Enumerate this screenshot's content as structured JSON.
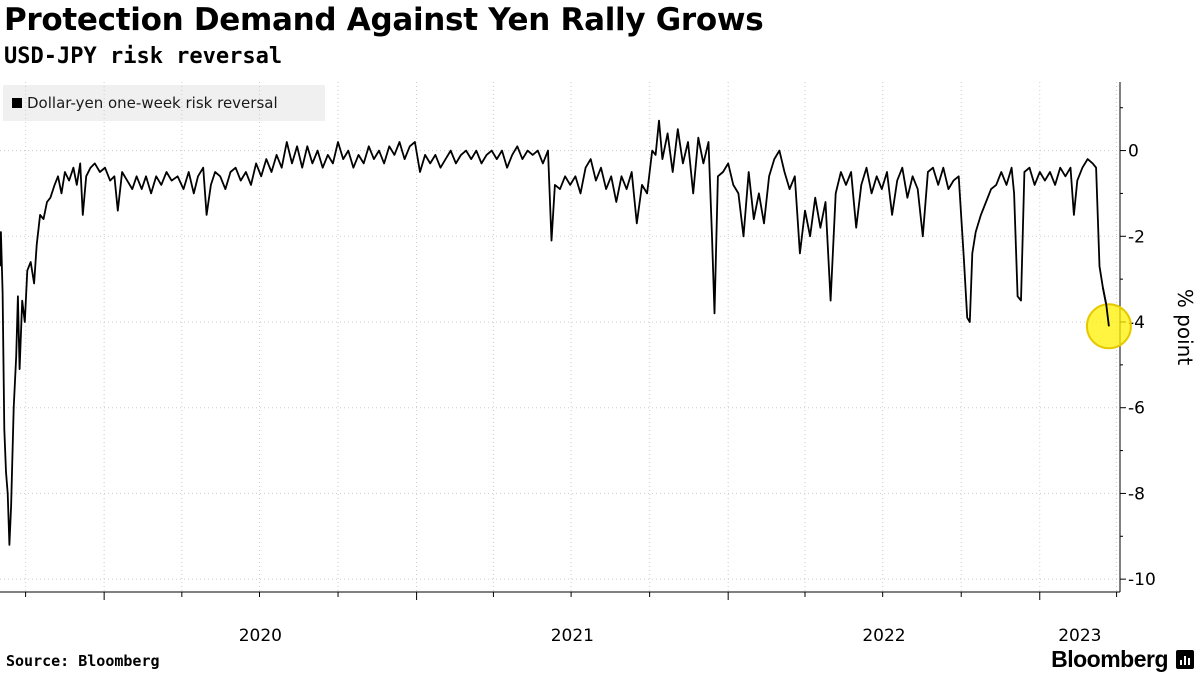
{
  "title": "Protection Demand Against Yen Rally Grows",
  "subtitle": "USD-JPY risk reversal",
  "legend": {
    "label": "Dollar-yen one-week risk reversal"
  },
  "source": "Source: Bloomberg",
  "brand": "Bloomberg",
  "colors": {
    "line": "#000000",
    "highlight": "#fff200",
    "highlight_stroke": "#e6c800",
    "grid": "#cccccc",
    "legend_bg": "#f0f0f0"
  },
  "chart_data": {
    "type": "line",
    "title": "Protection Demand Against Yen Rally Grows",
    "subtitle": "USD-JPY risk reversal",
    "ylabel": "% point",
    "ylim": [
      -10.3,
      1.6
    ],
    "yticks": [
      0,
      -2,
      -4,
      -6,
      -8,
      -10
    ],
    "xlim": [
      "2019-09-01",
      "2023-04-05"
    ],
    "xtick_labels": [
      {
        "label": "2020",
        "date": "2020-01-01"
      },
      {
        "label": "2021",
        "date": "2021-01-01"
      },
      {
        "label": "2022",
        "date": "2022-01-01"
      },
      {
        "label": "2023",
        "date": "2023-01-01"
      }
    ],
    "grid": "horizontal and quarterly vertical dotted",
    "legend_position": "top-left",
    "highlight": {
      "date": "2023-03-23",
      "value": -4.1
    },
    "series": [
      {
        "name": "Dollar-yen one-week risk reversal",
        "points": [
          [
            "2019-09-01",
            -2.7
          ],
          [
            "2019-09-02",
            -1.9
          ],
          [
            "2019-09-04",
            -3.3
          ],
          [
            "2019-09-06",
            -6.5
          ],
          [
            "2019-09-08",
            -7.5
          ],
          [
            "2019-09-10",
            -8.0
          ],
          [
            "2019-09-12",
            -9.2
          ],
          [
            "2019-09-14",
            -8.3
          ],
          [
            "2019-09-17",
            -6.0
          ],
          [
            "2019-09-20",
            -4.8
          ],
          [
            "2019-09-22",
            -3.4
          ],
          [
            "2019-09-24",
            -5.1
          ],
          [
            "2019-09-27",
            -3.5
          ],
          [
            "2019-09-30",
            -4.0
          ],
          [
            "2019-10-03",
            -2.8
          ],
          [
            "2019-10-07",
            -2.6
          ],
          [
            "2019-10-11",
            -3.1
          ],
          [
            "2019-10-14",
            -2.2
          ],
          [
            "2019-10-18",
            -1.5
          ],
          [
            "2019-10-22",
            -1.6
          ],
          [
            "2019-10-26",
            -1.2
          ],
          [
            "2019-10-30",
            -1.1
          ],
          [
            "2019-11-04",
            -0.8
          ],
          [
            "2019-11-08",
            -0.6
          ],
          [
            "2019-11-12",
            -1.0
          ],
          [
            "2019-11-16",
            -0.5
          ],
          [
            "2019-11-21",
            -0.7
          ],
          [
            "2019-11-26",
            -0.4
          ],
          [
            "2019-11-30",
            -0.8
          ],
          [
            "2019-12-04",
            -0.3
          ],
          [
            "2019-12-07",
            -1.5
          ],
          [
            "2019-12-11",
            -0.6
          ],
          [
            "2019-12-16",
            -0.4
          ],
          [
            "2019-12-21",
            -0.3
          ],
          [
            "2019-12-27",
            -0.5
          ],
          [
            "2020-01-02",
            -0.4
          ],
          [
            "2020-01-08",
            -0.7
          ],
          [
            "2020-01-13",
            -0.6
          ],
          [
            "2020-01-17",
            -1.4
          ],
          [
            "2020-01-22",
            -0.5
          ],
          [
            "2020-01-28",
            -0.7
          ],
          [
            "2020-02-03",
            -0.9
          ],
          [
            "2020-02-08",
            -0.6
          ],
          [
            "2020-02-14",
            -0.9
          ],
          [
            "2020-02-19",
            -0.6
          ],
          [
            "2020-02-25",
            -1.0
          ],
          [
            "2020-03-02",
            -0.6
          ],
          [
            "2020-03-08",
            -0.8
          ],
          [
            "2020-03-14",
            -0.5
          ],
          [
            "2020-03-20",
            -0.7
          ],
          [
            "2020-03-27",
            -0.6
          ],
          [
            "2020-04-03",
            -0.9
          ],
          [
            "2020-04-09",
            -0.5
          ],
          [
            "2020-04-15",
            -1.0
          ],
          [
            "2020-04-20",
            -0.6
          ],
          [
            "2020-04-26",
            -0.4
          ],
          [
            "2020-04-30",
            -1.5
          ],
          [
            "2020-05-05",
            -0.8
          ],
          [
            "2020-05-10",
            -0.5
          ],
          [
            "2020-05-16",
            -0.6
          ],
          [
            "2020-05-22",
            -0.9
          ],
          [
            "2020-05-28",
            -0.5
          ],
          [
            "2020-06-03",
            -0.4
          ],
          [
            "2020-06-09",
            -0.7
          ],
          [
            "2020-06-15",
            -0.5
          ],
          [
            "2020-06-21",
            -0.8
          ],
          [
            "2020-06-27",
            -0.3
          ],
          [
            "2020-07-03",
            -0.6
          ],
          [
            "2020-07-09",
            -0.2
          ],
          [
            "2020-07-15",
            -0.5
          ],
          [
            "2020-07-21",
            -0.1
          ],
          [
            "2020-07-27",
            -0.4
          ],
          [
            "2020-08-02",
            0.2
          ],
          [
            "2020-08-08",
            -0.3
          ],
          [
            "2020-08-14",
            0.1
          ],
          [
            "2020-08-20",
            -0.4
          ],
          [
            "2020-08-26",
            0.1
          ],
          [
            "2020-09-01",
            -0.3
          ],
          [
            "2020-09-07",
            0.0
          ],
          [
            "2020-09-13",
            -0.4
          ],
          [
            "2020-09-19",
            -0.1
          ],
          [
            "2020-09-25",
            -0.3
          ],
          [
            "2020-10-01",
            0.2
          ],
          [
            "2020-10-07",
            -0.2
          ],
          [
            "2020-10-13",
            0.0
          ],
          [
            "2020-10-19",
            -0.4
          ],
          [
            "2020-10-25",
            -0.1
          ],
          [
            "2020-10-31",
            -0.3
          ],
          [
            "2020-11-06",
            0.1
          ],
          [
            "2020-11-12",
            -0.2
          ],
          [
            "2020-11-18",
            0.0
          ],
          [
            "2020-11-24",
            -0.3
          ],
          [
            "2020-11-30",
            0.1
          ],
          [
            "2020-12-06",
            -0.1
          ],
          [
            "2020-12-12",
            0.2
          ],
          [
            "2020-12-18",
            -0.2
          ],
          [
            "2020-12-24",
            0.1
          ],
          [
            "2020-12-30",
            0.2
          ],
          [
            "2021-01-05",
            -0.5
          ],
          [
            "2021-01-11",
            -0.1
          ],
          [
            "2021-01-17",
            -0.3
          ],
          [
            "2021-01-23",
            -0.1
          ],
          [
            "2021-01-29",
            -0.4
          ],
          [
            "2021-02-04",
            -0.2
          ],
          [
            "2021-02-10",
            0.0
          ],
          [
            "2021-02-16",
            -0.3
          ],
          [
            "2021-02-22",
            -0.1
          ],
          [
            "2021-02-28",
            0.0
          ],
          [
            "2021-03-06",
            -0.2
          ],
          [
            "2021-03-12",
            0.0
          ],
          [
            "2021-03-18",
            -0.3
          ],
          [
            "2021-03-24",
            -0.1
          ],
          [
            "2021-03-30",
            0.0
          ],
          [
            "2021-04-05",
            -0.2
          ],
          [
            "2021-04-11",
            0.0
          ],
          [
            "2021-04-17",
            -0.4
          ],
          [
            "2021-04-23",
            -0.1
          ],
          [
            "2021-04-29",
            0.1
          ],
          [
            "2021-05-05",
            -0.2
          ],
          [
            "2021-05-11",
            0.0
          ],
          [
            "2021-05-17",
            -0.1
          ],
          [
            "2021-05-23",
            0.0
          ],
          [
            "2021-05-29",
            -0.3
          ],
          [
            "2021-06-04",
            0.0
          ],
          [
            "2021-06-08",
            -2.1
          ],
          [
            "2021-06-12",
            -0.8
          ],
          [
            "2021-06-18",
            -0.9
          ],
          [
            "2021-06-24",
            -0.6
          ],
          [
            "2021-06-30",
            -0.8
          ],
          [
            "2021-07-06",
            -0.6
          ],
          [
            "2021-07-12",
            -1.0
          ],
          [
            "2021-07-18",
            -0.4
          ],
          [
            "2021-07-24",
            -0.2
          ],
          [
            "2021-07-30",
            -0.7
          ],
          [
            "2021-08-05",
            -0.4
          ],
          [
            "2021-08-11",
            -0.9
          ],
          [
            "2021-08-17",
            -0.6
          ],
          [
            "2021-08-23",
            -1.2
          ],
          [
            "2021-08-29",
            -0.6
          ],
          [
            "2021-09-04",
            -0.9
          ],
          [
            "2021-09-10",
            -0.5
          ],
          [
            "2021-09-16",
            -1.7
          ],
          [
            "2021-09-22",
            -0.8
          ],
          [
            "2021-09-28",
            -1.0
          ],
          [
            "2021-10-04",
            0.0
          ],
          [
            "2021-10-08",
            -0.1
          ],
          [
            "2021-10-12",
            0.7
          ],
          [
            "2021-10-16",
            -0.2
          ],
          [
            "2021-10-22",
            0.4
          ],
          [
            "2021-10-28",
            -0.5
          ],
          [
            "2021-11-03",
            0.5
          ],
          [
            "2021-11-09",
            -0.3
          ],
          [
            "2021-11-15",
            0.2
          ],
          [
            "2021-11-21",
            -1.0
          ],
          [
            "2021-11-27",
            0.3
          ],
          [
            "2021-12-03",
            -0.3
          ],
          [
            "2021-12-09",
            0.2
          ],
          [
            "2021-12-13",
            -2.0
          ],
          [
            "2021-12-16",
            -3.8
          ],
          [
            "2021-12-20",
            -0.6
          ],
          [
            "2021-12-26",
            -0.5
          ],
          [
            "2022-01-01",
            -0.3
          ],
          [
            "2022-01-07",
            -0.8
          ],
          [
            "2022-01-13",
            -1.0
          ],
          [
            "2022-01-19",
            -2.0
          ],
          [
            "2022-01-25",
            -0.5
          ],
          [
            "2022-01-31",
            -1.6
          ],
          [
            "2022-02-06",
            -1.0
          ],
          [
            "2022-02-12",
            -1.7
          ],
          [
            "2022-02-18",
            -0.6
          ],
          [
            "2022-02-24",
            -0.2
          ],
          [
            "2022-03-02",
            0.0
          ],
          [
            "2022-03-08",
            -0.5
          ],
          [
            "2022-03-14",
            -0.9
          ],
          [
            "2022-03-20",
            -0.6
          ],
          [
            "2022-03-26",
            -2.4
          ],
          [
            "2022-04-01",
            -1.4
          ],
          [
            "2022-04-07",
            -2.0
          ],
          [
            "2022-04-13",
            -1.1
          ],
          [
            "2022-04-19",
            -1.8
          ],
          [
            "2022-04-25",
            -1.2
          ],
          [
            "2022-05-01",
            -3.5
          ],
          [
            "2022-05-07",
            -1.0
          ],
          [
            "2022-05-13",
            -0.5
          ],
          [
            "2022-05-19",
            -0.8
          ],
          [
            "2022-05-25",
            -0.5
          ],
          [
            "2022-05-31",
            -1.8
          ],
          [
            "2022-06-06",
            -0.8
          ],
          [
            "2022-06-12",
            -0.4
          ],
          [
            "2022-06-18",
            -1.0
          ],
          [
            "2022-06-24",
            -0.6
          ],
          [
            "2022-06-30",
            -0.9
          ],
          [
            "2022-07-06",
            -0.5
          ],
          [
            "2022-07-12",
            -1.5
          ],
          [
            "2022-07-18",
            -0.7
          ],
          [
            "2022-07-24",
            -0.4
          ],
          [
            "2022-07-30",
            -1.1
          ],
          [
            "2022-08-05",
            -0.6
          ],
          [
            "2022-08-11",
            -0.9
          ],
          [
            "2022-08-17",
            -2.0
          ],
          [
            "2022-08-23",
            -0.5
          ],
          [
            "2022-08-29",
            -0.4
          ],
          [
            "2022-09-04",
            -0.8
          ],
          [
            "2022-09-10",
            -0.4
          ],
          [
            "2022-09-16",
            -0.9
          ],
          [
            "2022-09-22",
            -0.7
          ],
          [
            "2022-09-28",
            -0.6
          ],
          [
            "2022-10-04",
            -2.5
          ],
          [
            "2022-10-08",
            -3.9
          ],
          [
            "2022-10-11",
            -4.0
          ],
          [
            "2022-10-14",
            -2.4
          ],
          [
            "2022-10-18",
            -1.9
          ],
          [
            "2022-10-24",
            -1.5
          ],
          [
            "2022-10-30",
            -1.2
          ],
          [
            "2022-11-05",
            -0.9
          ],
          [
            "2022-11-11",
            -0.8
          ],
          [
            "2022-11-17",
            -0.5
          ],
          [
            "2022-11-23",
            -0.8
          ],
          [
            "2022-11-29",
            -0.4
          ],
          [
            "2022-12-02",
            -1.0
          ],
          [
            "2022-12-06",
            -3.4
          ],
          [
            "2022-12-10",
            -3.5
          ],
          [
            "2022-12-14",
            -0.5
          ],
          [
            "2022-12-20",
            -0.4
          ],
          [
            "2022-12-26",
            -0.8
          ],
          [
            "2023-01-01",
            -0.5
          ],
          [
            "2023-01-07",
            -0.7
          ],
          [
            "2023-01-13",
            -0.5
          ],
          [
            "2023-01-19",
            -0.8
          ],
          [
            "2023-01-25",
            -0.4
          ],
          [
            "2023-01-31",
            -0.6
          ],
          [
            "2023-02-06",
            -0.4
          ],
          [
            "2023-02-10",
            -1.5
          ],
          [
            "2023-02-14",
            -0.7
          ],
          [
            "2023-02-20",
            -0.4
          ],
          [
            "2023-02-26",
            -0.2
          ],
          [
            "2023-03-04",
            -0.3
          ],
          [
            "2023-03-08",
            -0.4
          ],
          [
            "2023-03-12",
            -2.7
          ],
          [
            "2023-03-16",
            -3.2
          ],
          [
            "2023-03-20",
            -3.6
          ],
          [
            "2023-03-23",
            -4.1
          ]
        ]
      }
    ]
  }
}
